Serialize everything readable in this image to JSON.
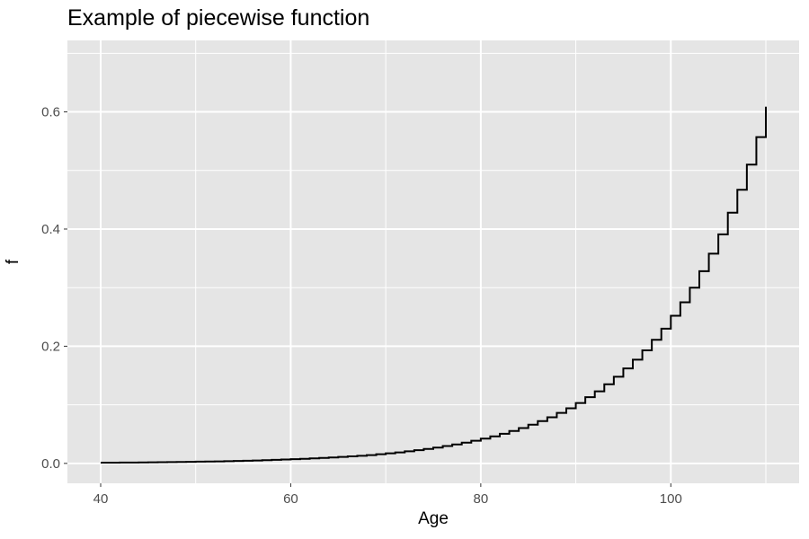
{
  "chart_data": {
    "type": "line",
    "step": true,
    "title": "Example of piecewise function",
    "xlabel": "Age",
    "ylabel": "f",
    "xlim": [
      36.5,
      113.5
    ],
    "ylim": [
      -0.034,
      0.722
    ],
    "xticks": [
      40,
      60,
      80,
      100
    ],
    "yticks": [
      0.0,
      0.2,
      0.4,
      0.6
    ],
    "x_minor": [
      50,
      70,
      90,
      110
    ],
    "y_minor": [
      0.1,
      0.3,
      0.5,
      0.7
    ],
    "grid": true,
    "background": "#e5e5e5",
    "line_color": "#000000",
    "grid_color": "#ffffff",
    "x": [
      40,
      41,
      42,
      43,
      44,
      45,
      46,
      47,
      48,
      49,
      50,
      51,
      52,
      53,
      54,
      55,
      56,
      57,
      58,
      59,
      60,
      61,
      62,
      63,
      64,
      65,
      66,
      67,
      68,
      69,
      70,
      71,
      72,
      73,
      74,
      75,
      76,
      77,
      78,
      79,
      80,
      81,
      82,
      83,
      84,
      85,
      86,
      87,
      88,
      89,
      90,
      91,
      92,
      93,
      94,
      95,
      96,
      97,
      98,
      99,
      100,
      101,
      102,
      103,
      104,
      105,
      106,
      107,
      108,
      109,
      110
    ],
    "y": [
      0.0012,
      0.0013,
      0.0014,
      0.0015,
      0.0017,
      0.0018,
      0.002,
      0.0022,
      0.0024,
      0.0026,
      0.0029,
      0.0031,
      0.0034,
      0.0037,
      0.0041,
      0.0045,
      0.005,
      0.0055,
      0.006,
      0.0066,
      0.0072,
      0.0078,
      0.0085,
      0.0093,
      0.0101,
      0.011,
      0.012,
      0.013,
      0.0142,
      0.0156,
      0.0171,
      0.0188,
      0.0206,
      0.0226,
      0.0247,
      0.027,
      0.0296,
      0.0323,
      0.0354,
      0.0387,
      0.0423,
      0.0462,
      0.0505,
      0.0553,
      0.0604,
      0.066,
      0.0721,
      0.0788,
      0.0861,
      0.0941,
      0.103,
      0.113,
      0.123,
      0.135,
      0.148,
      0.162,
      0.177,
      0.193,
      0.211,
      0.23,
      0.252,
      0.275,
      0.3,
      0.328,
      0.358,
      0.391,
      0.428,
      0.467,
      0.51,
      0.557,
      0.609
    ]
  }
}
